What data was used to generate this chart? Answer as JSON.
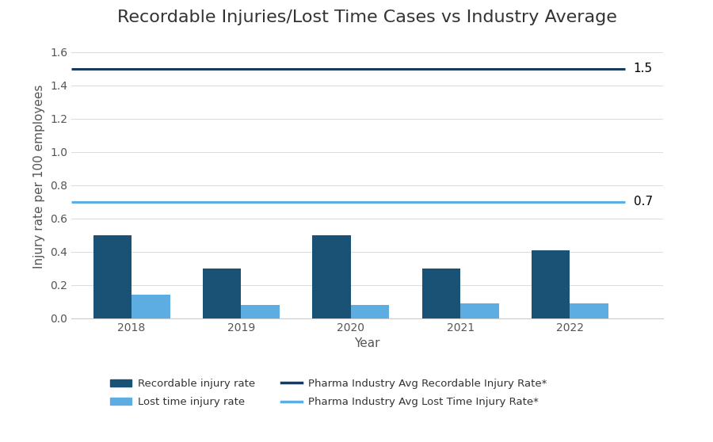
{
  "title": "Recordable Injuries/Lost Time Cases vs Industry Average",
  "years": [
    2018,
    2019,
    2020,
    2021,
    2022
  ],
  "recordable_injury_rate": [
    0.5,
    0.3,
    0.5,
    0.3,
    0.41
  ],
  "lost_time_injury_rate": [
    0.14,
    0.08,
    0.08,
    0.09,
    0.09
  ],
  "pharma_recordable_avg": 1.5,
  "pharma_lost_time_avg": 0.7,
  "bar_color_recordable": "#1A5276",
  "bar_color_lost_time": "#5DADE2",
  "line_color_recordable": "#1A3A5C",
  "line_color_lost_time": "#5DADE2",
  "ylabel": "Injury rate per 100 employees",
  "xlabel": "Year",
  "ylim": [
    0.0,
    1.7
  ],
  "yticks": [
    0.0,
    0.2,
    0.4,
    0.6,
    0.8,
    1.0,
    1.2,
    1.4,
    1.6
  ],
  "ytick_labels": [
    "0.0",
    "0.2",
    "0.4",
    "0.6",
    "0.8",
    "1.0",
    "1.2",
    "1.4",
    "1.6"
  ],
  "background_color": "#FFFFFF",
  "grid_color": "#DDDDDD",
  "title_fontsize": 16,
  "label_fontsize": 11,
  "tick_fontsize": 10,
  "bar_width": 0.35,
  "legend_recordable_bar": "Recordable injury rate",
  "legend_lost_time_bar": "Lost time injury rate",
  "legend_recordable_line": "Pharma Industry Avg Recordable Injury Rate*",
  "legend_lost_time_line": "Pharma Industry Avg Lost Time Injury Rate*",
  "annotation_recordable": "1.5",
  "annotation_lost_time": "0.7"
}
